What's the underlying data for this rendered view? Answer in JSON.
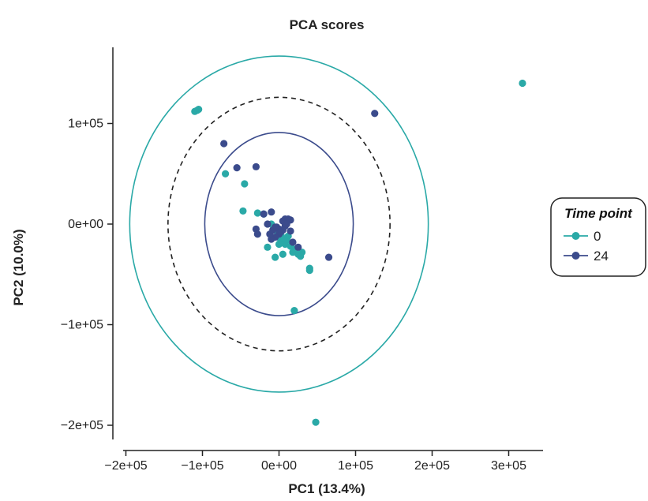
{
  "chart_data": {
    "type": "scatter",
    "title": "PCA scores",
    "xlabel": "PC1 (13.4%)",
    "ylabel": "PC2 (10.0%)",
    "xlim": [
      -210000,
      335000
    ],
    "ylim": [
      -210000,
      175000
    ],
    "xticks": [
      -200000,
      -100000,
      0,
      100000,
      200000,
      300000
    ],
    "xtick_labels": [
      "−2e+05",
      "−1e+05",
      "0e+00",
      "1e+05",
      "2e+05",
      "3e+05"
    ],
    "yticks": [
      -200000,
      -100000,
      0,
      100000
    ],
    "ytick_labels": [
      "−2e+05",
      "−1e+05",
      "0e+00",
      "1e+05"
    ],
    "grid": false,
    "legend": {
      "title": "Time point",
      "placement": "right"
    },
    "series": [
      {
        "name": "0",
        "color": "#2aa9a7",
        "x": [
          318000,
          -110000,
          -107000,
          -105000,
          -70000,
          -45000,
          -47000,
          -28000,
          -20000,
          -10000,
          -5000,
          0,
          2000,
          5000,
          8000,
          10000,
          12000,
          15000,
          18000,
          20000,
          25000,
          28000,
          30000,
          40000,
          40000,
          20000,
          48000,
          -15000,
          -5000,
          0,
          5000,
          10000,
          -2000,
          3000
        ],
        "y": [
          140000,
          112000,
          113000,
          114000,
          50000,
          40000,
          13000,
          11000,
          10000,
          0,
          -5000,
          -10000,
          -15000,
          -18000,
          -20000,
          -16000,
          -12000,
          -22000,
          -28000,
          -25000,
          -30000,
          -32000,
          -28000,
          -44000,
          -46000,
          -86000,
          -197000,
          -23000,
          -33000,
          -20000,
          -30000,
          -15000,
          -8000,
          -12000
        ]
      },
      {
        "name": "24",
        "color": "#3b4b8c",
        "x": [
          125000,
          -72000,
          -55000,
          -30000,
          -20000,
          -10000,
          -15000,
          -5000,
          0,
          5000,
          8000,
          10000,
          12000,
          15000,
          8000,
          5000,
          0,
          -5000,
          -10000,
          -12000,
          -8000,
          -3000,
          2000,
          18000,
          25000,
          65000,
          -30000,
          -28000,
          15000,
          10000
        ],
        "y": [
          110000,
          80000,
          56000,
          57000,
          10000,
          12000,
          0,
          -3000,
          -5000,
          3000,
          5000,
          2000,
          5000,
          4000,
          -2000,
          -6000,
          -10000,
          -13000,
          -15000,
          -10000,
          -6000,
          -3000,
          -8000,
          -18000,
          -23000,
          -33000,
          -5000,
          -10000,
          -7000,
          0
        ]
      }
    ],
    "ellipses": [
      {
        "style": "solid",
        "color": "#2aa9a7",
        "cx": 0,
        "cy": 0,
        "rx": 195000,
        "ry": 167000
      },
      {
        "style": "dashed",
        "color": "#222222",
        "cx": 0,
        "cy": 0,
        "rx": 145000,
        "ry": 126000
      },
      {
        "style": "solid",
        "color": "#3b4b8c",
        "cx": 0,
        "cy": 0,
        "rx": 97000,
        "ry": 91000
      }
    ]
  }
}
